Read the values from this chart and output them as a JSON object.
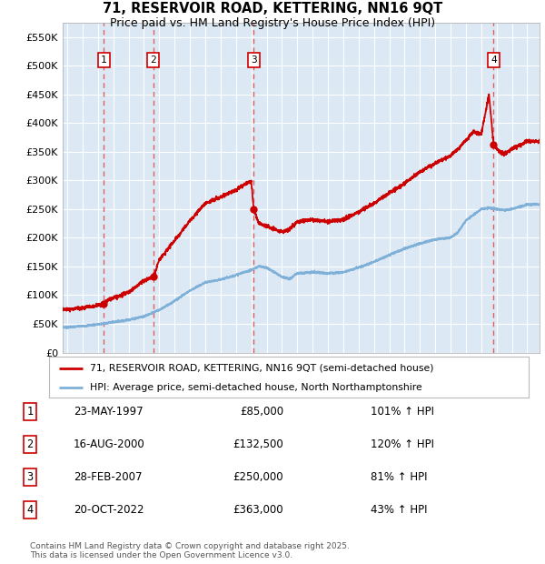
{
  "title_line1": "71, RESERVOIR ROAD, KETTERING, NN16 9QT",
  "title_line2": "Price paid vs. HM Land Registry's House Price Index (HPI)",
  "legend_property": "71, RESERVOIR ROAD, KETTERING, NN16 9QT (semi-detached house)",
  "legend_hpi": "HPI: Average price, semi-detached house, North Northamptonshire",
  "footer": "Contains HM Land Registry data © Crown copyright and database right 2025.\nThis data is licensed under the Open Government Licence v3.0.",
  "transactions": [
    {
      "num": 1,
      "date": "23-MAY-1997",
      "price": 85000,
      "price_str": "£85,000",
      "hpi_pct": "101%",
      "x_year": 1997.39
    },
    {
      "num": 2,
      "date": "16-AUG-2000",
      "price": 132500,
      "price_str": "£132,500",
      "hpi_pct": "120%",
      "x_year": 2000.62
    },
    {
      "num": 3,
      "date": "28-FEB-2007",
      "price": 250000,
      "price_str": "£250,000",
      "hpi_pct": "81%",
      "x_year": 2007.16
    },
    {
      "num": 4,
      "date": "20-OCT-2022",
      "price": 363000,
      "price_str": "£363,000",
      "hpi_pct": "43%",
      "x_year": 2022.8
    }
  ],
  "property_color": "#cc0000",
  "hpi_color": "#7fb0d8",
  "dashed_color": "#e05050",
  "plot_bg_color": "#dce9f5",
  "grid_color": "#ffffff",
  "ylim": [
    0,
    575000
  ],
  "xlim": [
    1994.7,
    2025.8
  ],
  "yticks": [
    0,
    50000,
    100000,
    150000,
    200000,
    250000,
    300000,
    350000,
    400000,
    450000,
    500000,
    550000
  ],
  "xticks": [
    1995,
    1996,
    1997,
    1998,
    1999,
    2000,
    2001,
    2002,
    2003,
    2004,
    2005,
    2006,
    2007,
    2008,
    2009,
    2010,
    2011,
    2012,
    2013,
    2014,
    2015,
    2016,
    2017,
    2018,
    2019,
    2020,
    2021,
    2022,
    2023,
    2024,
    2025
  ],
  "hpi_control": {
    "years": [
      1995,
      1996,
      1997,
      1998,
      1999,
      2000,
      2001,
      2002,
      2003,
      2004,
      2005,
      2006,
      2007,
      2007.5,
      2008,
      2009,
      2009.5,
      2010,
      2011,
      2012,
      2013,
      2014,
      2015,
      2016,
      2017,
      2018,
      2019,
      2020,
      2020.5,
      2021,
      2021.5,
      2022,
      2022.5,
      2023,
      2023.5,
      2024,
      2025
    ],
    "values": [
      44000,
      46000,
      49000,
      53000,
      57000,
      63000,
      74000,
      90000,
      108000,
      122000,
      127000,
      135000,
      144000,
      150000,
      148000,
      132000,
      128000,
      138000,
      140000,
      138000,
      140000,
      148000,
      158000,
      170000,
      181000,
      190000,
      197000,
      200000,
      210000,
      230000,
      240000,
      250000,
      252000,
      250000,
      248000,
      250000,
      258000
    ]
  },
  "prop_control": {
    "years": [
      1995,
      1996,
      1997,
      1997.39,
      1997.5,
      1998,
      1999,
      2000,
      2000.62,
      2000.8,
      2001,
      2002,
      2003,
      2004,
      2005,
      2005.5,
      2006,
      2006.5,
      2007,
      2007.16,
      2007.5,
      2008,
      2009,
      2009.5,
      2010,
      2011,
      2012,
      2013,
      2014,
      2015,
      2016,
      2017,
      2018,
      2019,
      2020,
      2020.5,
      2021,
      2021.5,
      2022,
      2022.5,
      2022.8,
      2023,
      2023.5,
      2024,
      2025
    ],
    "values": [
      75000,
      78000,
      82000,
      85000,
      89000,
      95000,
      105000,
      125000,
      132500,
      145000,
      162000,
      195000,
      230000,
      260000,
      270000,
      278000,
      283000,
      293000,
      298000,
      250000,
      225000,
      220000,
      210000,
      215000,
      228000,
      232000,
      228000,
      232000,
      245000,
      260000,
      278000,
      295000,
      315000,
      330000,
      343000,
      355000,
      370000,
      385000,
      380000,
      450000,
      363000,
      355000,
      345000,
      355000,
      368000
    ]
  }
}
